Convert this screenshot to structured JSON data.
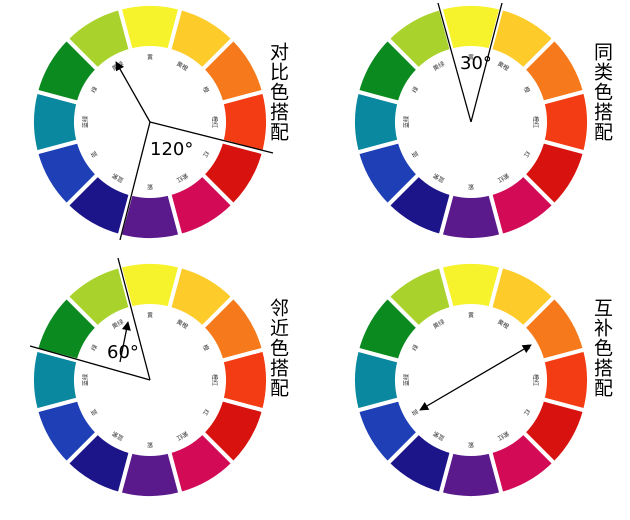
{
  "wheel_labels": [
    "黄",
    "黄橙",
    "橙",
    "橙红",
    "红",
    "紫红",
    "紫",
    "蓝紫",
    "蓝",
    "蓝绿",
    "绿",
    "黄绿"
  ],
  "panels": [
    {
      "title": "对比色搭配",
      "angle": "120°"
    },
    {
      "title": "同类色搭配",
      "angle": "30°"
    },
    {
      "title": "邻近色搭配",
      "angle": "60°"
    },
    {
      "title": "互补色搭配"
    }
  ]
}
